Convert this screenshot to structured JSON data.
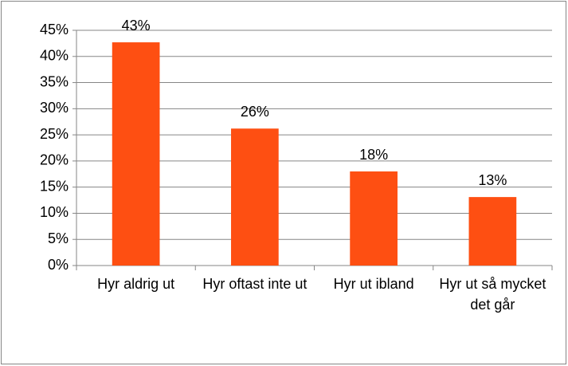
{
  "chart_data": {
    "type": "bar",
    "categories": [
      "Hyr aldrig ut",
      "Hyr oftast inte ut",
      "Hyr ut ibland",
      "Hyr ut så mycket det går"
    ],
    "values": [
      42.7,
      26.2,
      18.0,
      13.1
    ],
    "value_labels": [
      "43%",
      "26%",
      "18%",
      "13%"
    ],
    "color": "#fe4f12",
    "ylim": [
      0,
      45
    ],
    "yticks": [
      {
        "value": 0,
        "label": "0%"
      },
      {
        "value": 5,
        "label": "5%"
      },
      {
        "value": 10,
        "label": "10%"
      },
      {
        "value": 15,
        "label": "15%"
      },
      {
        "value": 20,
        "label": "20%"
      },
      {
        "value": 25,
        "label": "25%"
      },
      {
        "value": 30,
        "label": "30%"
      },
      {
        "value": 35,
        "label": "35%"
      },
      {
        "value": 40,
        "label": "40%"
      },
      {
        "value": 45,
        "label": "45%"
      }
    ],
    "grid": true
  }
}
